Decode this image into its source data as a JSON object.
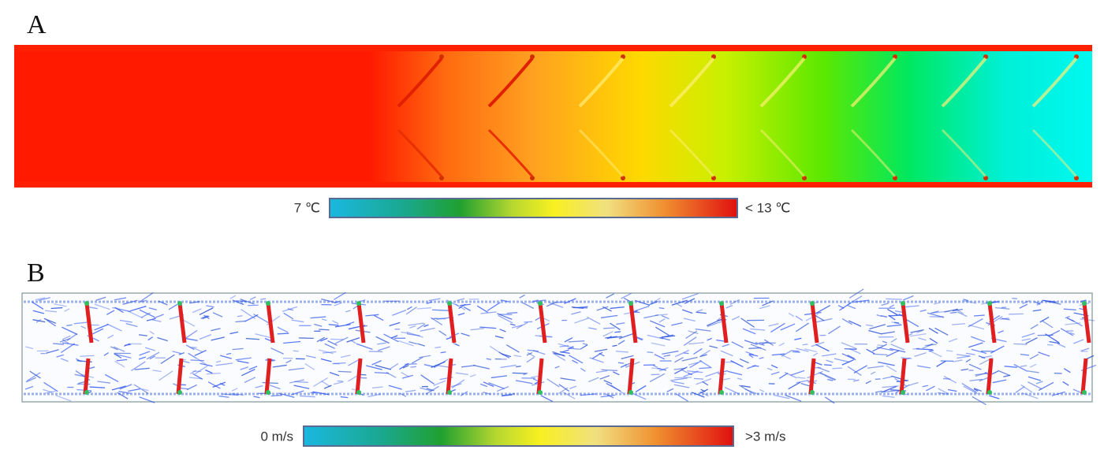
{
  "panels": [
    {
      "label": "A",
      "colorbar": {
        "min_label": "7 ℃",
        "max_label": "< 13 ℃"
      }
    },
    {
      "label": "B",
      "colorbar": {
        "min_label": "0 m/s",
        "max_label": ">3 m/s"
      }
    }
  ]
}
